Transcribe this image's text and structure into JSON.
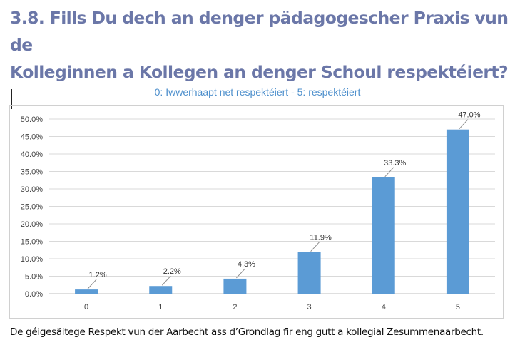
{
  "heading": {
    "line1": "3.8. Fills Du dech an denger pädagogescher Praxis vun de",
    "line2": "Kolleginnen a Kollegen an denger Schoul respektéiert?"
  },
  "caption": "De géigesäitege Respekt vun der Aarbecht ass d’Grondlag fir eng gutt a kollegial Zesummenaarbecht.",
  "colors": {
    "heading": "#6b77a8",
    "subtitle": "#4d8fcc",
    "bar": "#5b9bd5",
    "grid": "#d9d9d9"
  },
  "chart_data": {
    "type": "bar",
    "title": "0: Iwwerhaapt net respektéiert - 5: respektéiert",
    "categories": [
      "0",
      "1",
      "2",
      "3",
      "4",
      "5"
    ],
    "values": [
      1.2,
      2.2,
      4.3,
      11.9,
      33.3,
      47.0
    ],
    "value_labels": [
      "1.2%",
      "2.2%",
      "4.3%",
      "11.9%",
      "33.3%",
      "47.0%"
    ],
    "ylim": [
      0,
      50
    ],
    "yticks": [
      "0.0%",
      "5.0%",
      "10.0%",
      "15.0%",
      "20.0%",
      "25.0%",
      "30.0%",
      "35.0%",
      "40.0%",
      "45.0%",
      "50.0%"
    ],
    "xlabel": "",
    "ylabel": "",
    "grid": true,
    "legend": "none"
  }
}
